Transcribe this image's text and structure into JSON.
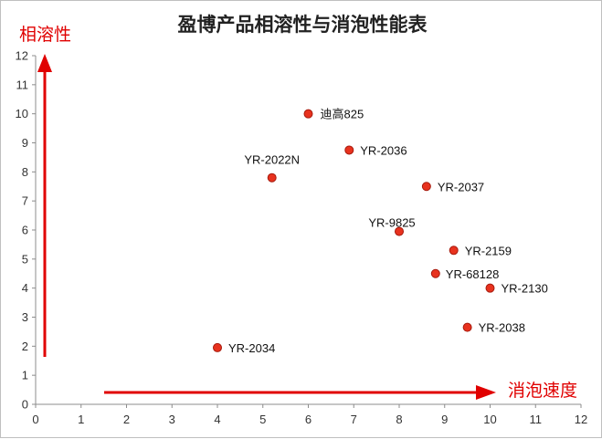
{
  "chart_data": {
    "type": "scatter",
    "title": "盈博产品相溶性与消泡性能表",
    "xlabel": "消泡速度",
    "ylabel": "相溶性",
    "xlim": [
      0,
      12
    ],
    "ylim": [
      0,
      12
    ],
    "x_ticks": [
      "0",
      "1",
      "2",
      "3",
      "4",
      "5",
      "6",
      "7",
      "8",
      "9",
      "10",
      "11",
      "12"
    ],
    "y_ticks": [
      "0",
      "1",
      "2",
      "3",
      "4",
      "5",
      "6",
      "7",
      "8",
      "9",
      "10",
      "11",
      "12"
    ],
    "grid": false,
    "points": [
      {
        "label": "迪高825",
        "x": 6.0,
        "y": 10.0
      },
      {
        "label": "YR-2036",
        "x": 6.9,
        "y": 8.75
      },
      {
        "label": "YR-2022N",
        "x": 5.2,
        "y": 7.8
      },
      {
        "label": "YR-2037",
        "x": 8.6,
        "y": 7.5
      },
      {
        "label": "YR-9825",
        "x": 8.0,
        "y": 5.95
      },
      {
        "label": "YR-2159",
        "x": 9.2,
        "y": 5.3
      },
      {
        "label": "YR-68128",
        "x": 8.8,
        "y": 4.5
      },
      {
        "label": "YR-2130",
        "x": 10.0,
        "y": 4.0
      },
      {
        "label": "YR-2038",
        "x": 9.5,
        "y": 2.65
      },
      {
        "label": "YR-2034",
        "x": 4.0,
        "y": 1.95
      }
    ],
    "colors": {
      "marker_fill": "#e8321e",
      "marker_stroke": "#a61b0e",
      "arrow": "#e00000",
      "axis_name": "#e00000"
    }
  }
}
